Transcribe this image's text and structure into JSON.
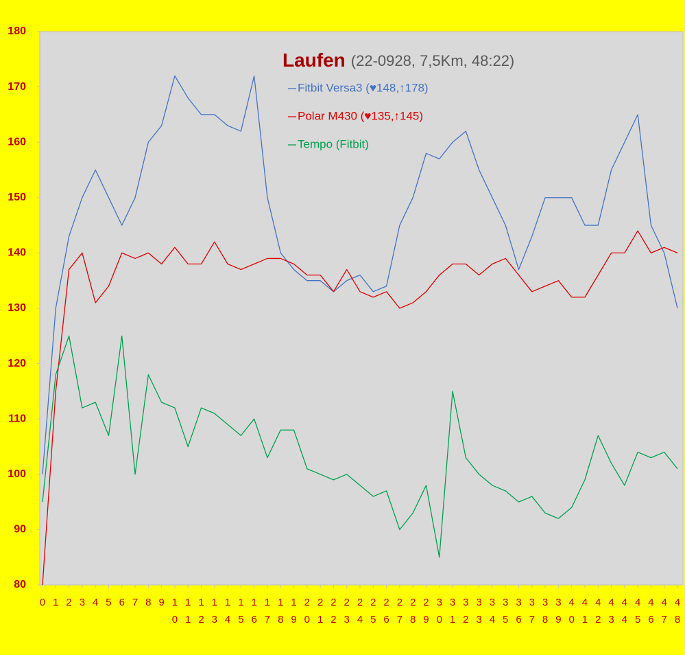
{
  "chart_data": {
    "type": "line",
    "title": "Laufen",
    "subtitle": "(22-0928, 7,5Km, 48:22)",
    "x": [
      0,
      1,
      2,
      3,
      4,
      5,
      6,
      7,
      8,
      9,
      10,
      11,
      12,
      13,
      14,
      15,
      16,
      17,
      18,
      19,
      20,
      21,
      22,
      23,
      24,
      25,
      26,
      27,
      28,
      29,
      30,
      31,
      32,
      33,
      34,
      35,
      36,
      37,
      38,
      39,
      40,
      41,
      42,
      43,
      44,
      45,
      46,
      47,
      48
    ],
    "xlim": [
      0,
      48
    ],
    "xticks": [
      0,
      1,
      2,
      3,
      4,
      5,
      6,
      7,
      8,
      9,
      10,
      11,
      12,
      13,
      14,
      15,
      16,
      17,
      18,
      19,
      20,
      21,
      22,
      23,
      24,
      25,
      26,
      27,
      28,
      29,
      30,
      31,
      32,
      33,
      34,
      35,
      36,
      37,
      38,
      39,
      40,
      41,
      42,
      43,
      44,
      45,
      46,
      47,
      48
    ],
    "ylim": [
      80,
      180
    ],
    "yticks": [
      80,
      90,
      100,
      110,
      120,
      130,
      140,
      150,
      160,
      170,
      180
    ],
    "grid": false,
    "legend": "top",
    "series": [
      {
        "name": "Fitbit Versa3 (♥148,↑178)",
        "color": "#4472c4",
        "values": [
          100,
          130,
          143,
          150,
          155,
          150,
          145,
          150,
          160,
          163,
          172,
          168,
          165,
          165,
          163,
          162,
          172,
          150,
          140,
          137,
          135,
          135,
          133,
          135,
          136,
          133,
          134,
          145,
          150,
          158,
          157,
          160,
          162,
          155,
          150,
          145,
          137,
          143,
          150,
          150,
          150,
          145,
          145,
          155,
          160,
          165,
          145,
          140,
          130
        ]
      },
      {
        "name": "Polar M430 (♥135,↑145)",
        "color": "#e00000",
        "values": [
          80,
          115,
          137,
          140,
          131,
          134,
          140,
          139,
          140,
          138,
          141,
          138,
          138,
          142,
          138,
          137,
          138,
          139,
          139,
          138,
          136,
          136,
          133,
          137,
          133,
          132,
          133,
          130,
          131,
          133,
          136,
          138,
          138,
          136,
          138,
          139,
          136,
          133,
          134,
          135,
          132,
          132,
          136,
          140,
          140,
          144,
          140,
          141,
          140
        ]
      },
      {
        "name": "Tempo (Fitbit)",
        "color": "#00a050",
        "values": [
          95,
          118,
          125,
          112,
          113,
          107,
          125,
          100,
          118,
          113,
          112,
          105,
          112,
          111,
          109,
          107,
          110,
          103,
          108,
          108,
          101,
          100,
          99,
          100,
          98,
          96,
          97,
          90,
          93,
          98,
          85,
          115,
          103,
          100,
          98,
          97,
          95,
          96,
          93,
          92,
          94,
          99,
          107,
          102,
          98,
          104,
          103,
          104,
          101
        ]
      }
    ]
  }
}
